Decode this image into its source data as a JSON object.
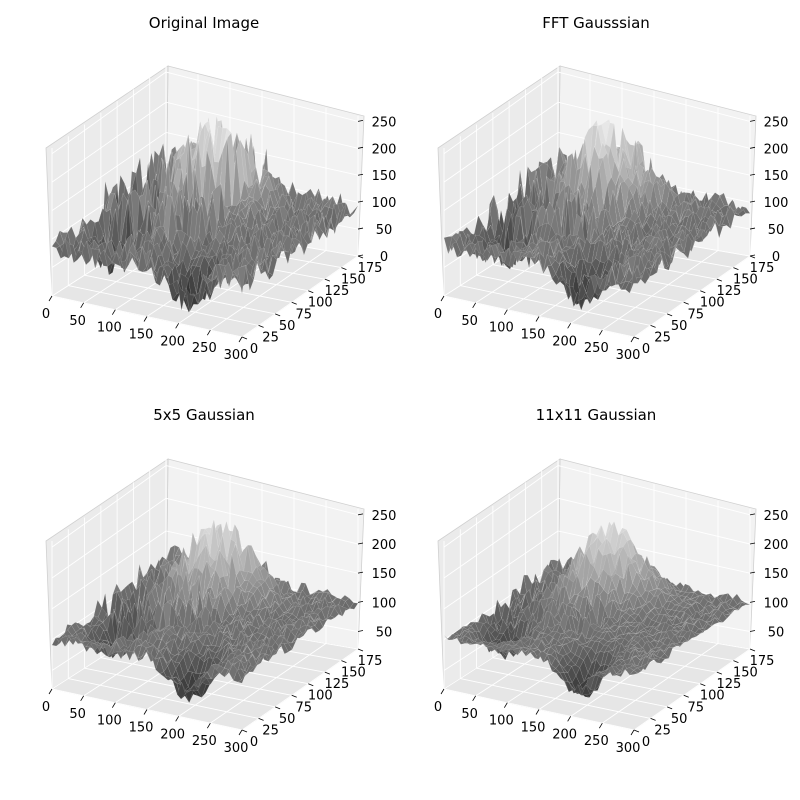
{
  "chart_data": [
    {
      "type": "surface3d",
      "title": "Original Image",
      "x_ticks": [
        "0",
        "50",
        "100",
        "150",
        "200",
        "250",
        "300"
      ],
      "y_ticks": [
        "0",
        "25",
        "50",
        "75",
        "100",
        "125",
        "150",
        "175"
      ],
      "z_ticks": [
        "0",
        "50",
        "100",
        "150",
        "200",
        "250"
      ],
      "xlim": [
        0,
        300
      ],
      "ylim": [
        0,
        180
      ],
      "zlim": [
        0,
        260
      ],
      "colormap": "gray",
      "grid": true,
      "noise": 1.0
    },
    {
      "type": "surface3d",
      "title": "FFT Gausssian",
      "x_ticks": [
        "0",
        "50",
        "100",
        "150",
        "200",
        "250",
        "300"
      ],
      "y_ticks": [
        "0",
        "25",
        "50",
        "75",
        "100",
        "125",
        "150",
        "175"
      ],
      "z_ticks": [
        "0",
        "50",
        "100",
        "150",
        "200",
        "250"
      ],
      "xlim": [
        0,
        300
      ],
      "ylim": [
        0,
        180
      ],
      "zlim": [
        0,
        260
      ],
      "colormap": "gray",
      "grid": true,
      "noise": 0.8
    },
    {
      "type": "surface3d",
      "title": "5x5 Gaussian",
      "x_ticks": [
        "0",
        "50",
        "100",
        "150",
        "200",
        "250",
        "300"
      ],
      "y_ticks": [
        "0",
        "25",
        "50",
        "75",
        "100",
        "125",
        "150",
        "175"
      ],
      "z_ticks": [
        "50",
        "100",
        "150",
        "200",
        "250"
      ],
      "xlim": [
        0,
        300
      ],
      "ylim": [
        0,
        180
      ],
      "zlim": [
        20,
        260
      ],
      "colormap": "gray",
      "grid": true,
      "noise": 0.5
    },
    {
      "type": "surface3d",
      "title": "11x11 Gaussian",
      "x_ticks": [
        "0",
        "50",
        "100",
        "150",
        "200",
        "250",
        "300"
      ],
      "y_ticks": [
        "0",
        "25",
        "50",
        "75",
        "100",
        "125",
        "150",
        "175"
      ],
      "z_ticks": [
        "50",
        "100",
        "150",
        "200",
        "250"
      ],
      "xlim": [
        0,
        300
      ],
      "ylim": [
        0,
        180
      ],
      "zlim": [
        20,
        260
      ],
      "colormap": "gray",
      "grid": true,
      "noise": 0.35
    }
  ]
}
